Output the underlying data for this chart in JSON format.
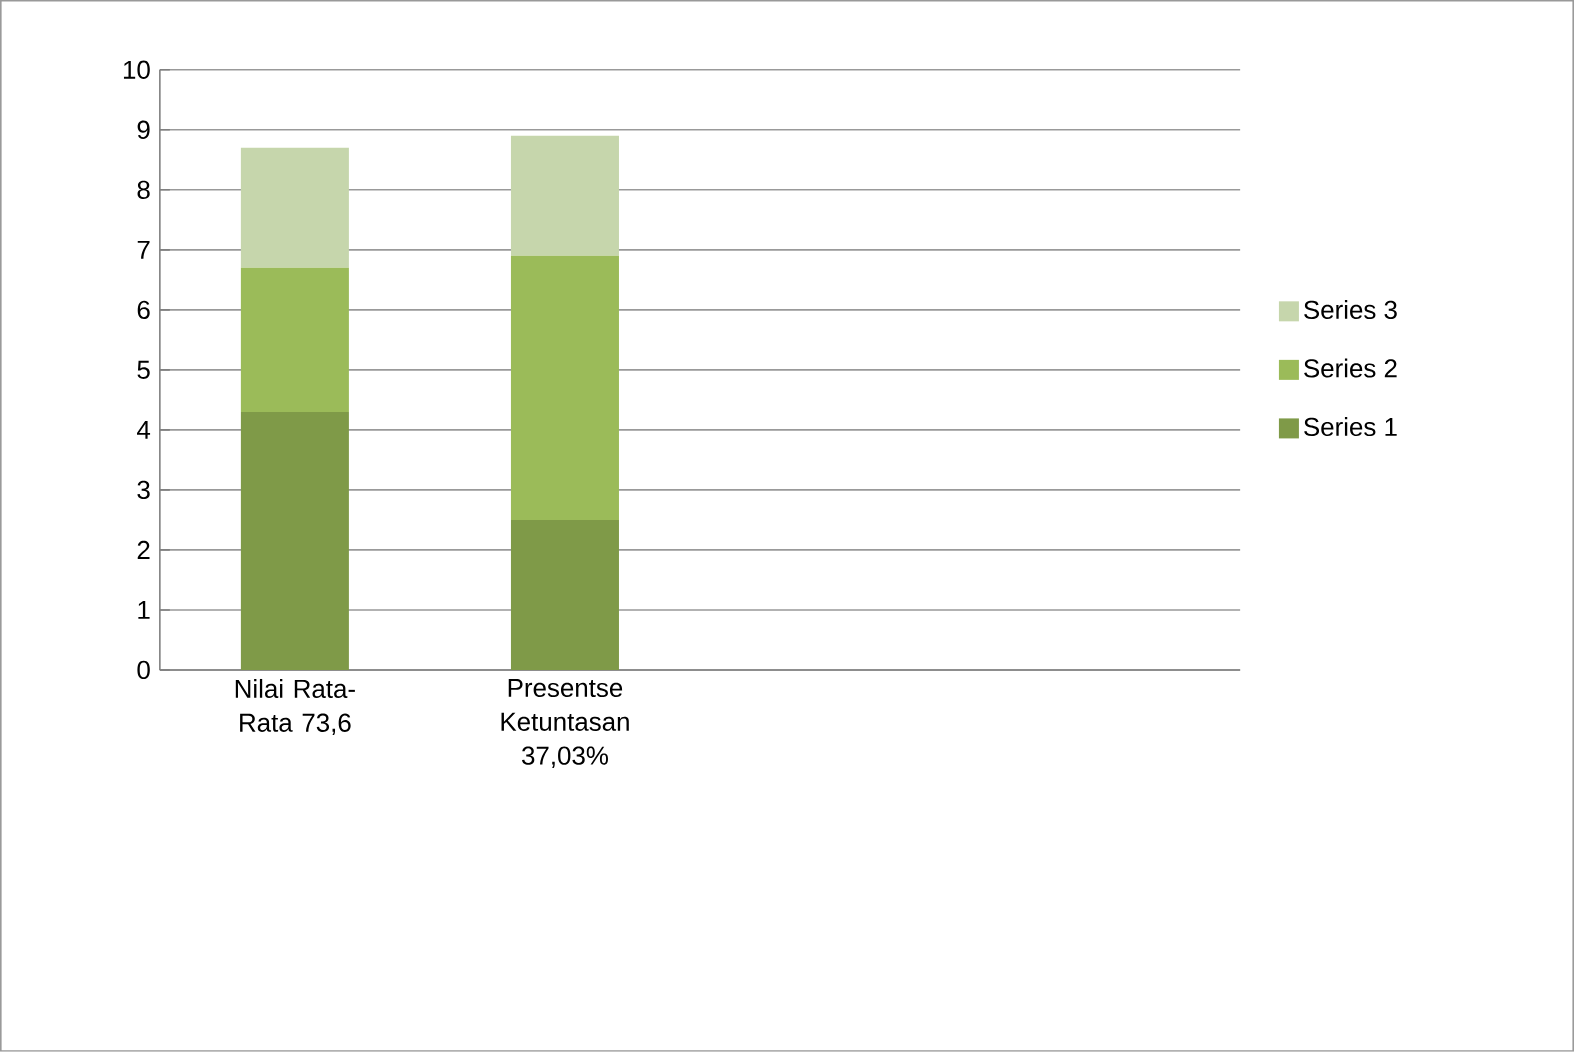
{
  "chart_data": {
    "type": "bar",
    "stacked": true,
    "categories": [
      "Nilai Rata-Rata 73,6",
      "Presentse Ketuntasan 37,03%",
      null,
      null
    ],
    "series": [
      {
        "name": "Series 1",
        "color": "#7f9a48",
        "values": [
          4.3,
          2.5,
          null,
          null
        ]
      },
      {
        "name": "Series 2",
        "color": "#9bbb59",
        "values": [
          2.4,
          4.4,
          null,
          null
        ]
      },
      {
        "name": "Series 3",
        "color": "#c6d6ac",
        "values": [
          2.0,
          2.0,
          null,
          null
        ]
      }
    ],
    "ylim": [
      0,
      10
    ],
    "yticks": [
      0,
      1,
      2,
      3,
      4,
      5,
      6,
      7,
      8,
      9,
      10
    ],
    "grid": "y",
    "legend": "right"
  }
}
